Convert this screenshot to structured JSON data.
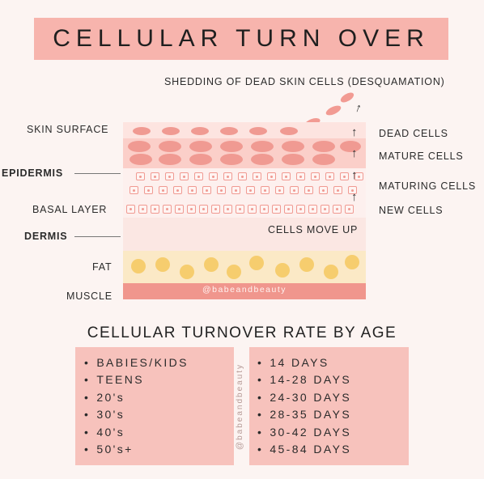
{
  "title": "CELLULAR TURN OVER",
  "diagram": {
    "shedding_label": "SHEDDING OF DEAD SKIN CELLS (DESQUAMATION)",
    "left_labels": {
      "skin_surface": "SKIN SURFACE",
      "epidermis": "EPIDERMIS",
      "basal_layer": "BASAL LAYER",
      "dermis": "DERMIS",
      "fat": "FAT",
      "muscle": "MUSCLE"
    },
    "right_labels": {
      "dead_cells": "DEAD CELLS",
      "mature_cells": "MATURE CELLS",
      "maturing_cells": "MATURING CELLS",
      "new_cells": "NEW CELLS",
      "cells_move_up": "CELLS MOVE UP"
    },
    "watermark": "@babeandbeauty",
    "arrow_glyph": "↑",
    "colors": {
      "title_bg": "#f7b4ad",
      "cell": "#f09a92",
      "fat": "#f6cd6e",
      "muscle": "#f0968d",
      "dermis": "#fbe7e3"
    }
  },
  "rates": {
    "heading": "CELLULAR TURNOVER RATE BY AGE",
    "ages": [
      "BABIES/KIDS",
      "TEENS",
      "20's",
      "30's",
      "40's",
      "50's+"
    ],
    "days": [
      "14 DAYS",
      "14-28 DAYS",
      "24-30 DAYS",
      "28-35 DAYS",
      "30-42 DAYS",
      "45-84 DAYS"
    ],
    "watermark": "@babeandbeauty"
  }
}
